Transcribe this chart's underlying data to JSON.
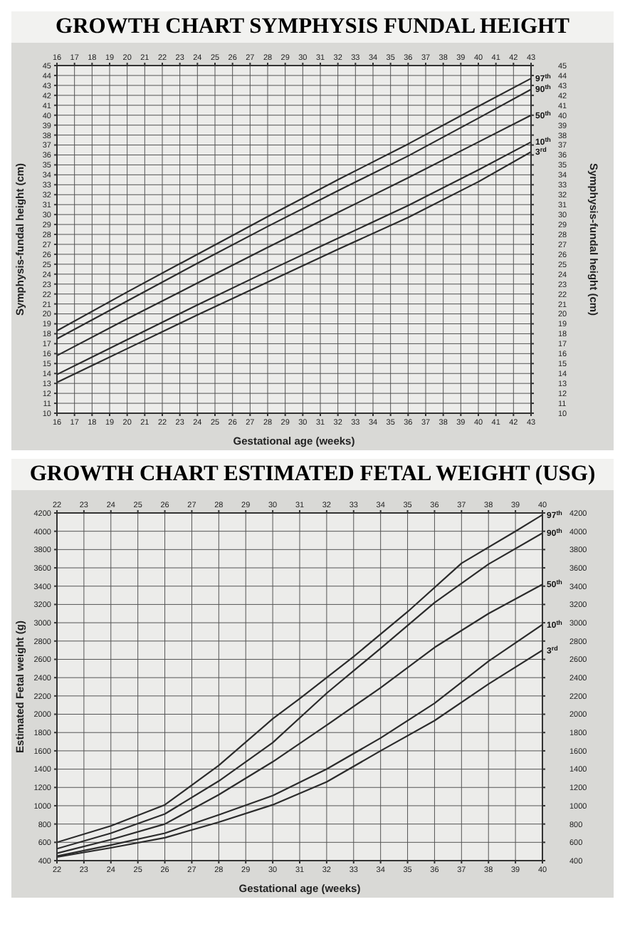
{
  "chart_data": [
    {
      "type": "line",
      "title": "GROWTH CHART SYMPHYSIS FUNDAL HEIGHT",
      "xlabel": "Gestational age (weeks)",
      "ylabel": "Symphysis-fundal height (cm)",
      "y2label": "Symphysis-fundal height (cm)",
      "xlim": [
        16,
        43
      ],
      "xticks": [
        16,
        17,
        18,
        19,
        20,
        21,
        22,
        23,
        24,
        25,
        26,
        27,
        28,
        29,
        30,
        31,
        32,
        33,
        34,
        35,
        36,
        37,
        38,
        39,
        40,
        41,
        42,
        43
      ],
      "x2lim": [
        16,
        43
      ],
      "x2ticks": [
        16,
        17,
        18,
        19,
        20,
        21,
        22,
        23,
        24,
        25,
        26,
        27,
        28,
        29,
        30,
        31,
        32,
        33,
        34,
        35,
        36,
        37,
        38,
        39,
        40,
        41,
        42,
        43
      ],
      "ylim": [
        10,
        45
      ],
      "yticks": [
        10,
        11,
        12,
        13,
        14,
        15,
        16,
        17,
        18,
        19,
        20,
        21,
        22,
        23,
        24,
        25,
        26,
        27,
        28,
        29,
        30,
        31,
        32,
        33,
        34,
        35,
        36,
        37,
        38,
        39,
        40,
        41,
        42,
        43,
        44,
        45
      ],
      "y2lim": [
        10,
        45
      ],
      "y2ticks": [
        10,
        11,
        12,
        13,
        14,
        15,
        16,
        17,
        18,
        19,
        20,
        21,
        22,
        23,
        24,
        25,
        26,
        27,
        28,
        29,
        30,
        31,
        32,
        33,
        34,
        35,
        36,
        37,
        38,
        39,
        40,
        41,
        42,
        43,
        44,
        45
      ],
      "grid": true,
      "legend": "right",
      "marker": "none",
      "line_style": "solid",
      "series": [
        {
          "name": "97$^{th}$",
          "color": "#2b2b2b",
          "x": [
            16,
            20,
            24,
            28,
            32,
            36,
            40,
            43
          ],
          "values": [
            18.3,
            22.2,
            26.0,
            29.8,
            33.5,
            37.1,
            40.9,
            43.7
          ]
        },
        {
          "name": "90$^{th}$",
          "color": "#2b2b2b",
          "x": [
            16,
            20,
            24,
            28,
            32,
            36,
            40,
            43
          ],
          "values": [
            17.5,
            21.3,
            25.1,
            28.8,
            32.4,
            35.9,
            39.7,
            42.6
          ]
        },
        {
          "name": "50$^{th}$",
          "color": "#2b2b2b",
          "x": [
            16,
            20,
            24,
            28,
            32,
            36,
            40,
            43
          ],
          "values": [
            15.8,
            19.5,
            23.1,
            26.7,
            30.2,
            33.7,
            37.3,
            40.0
          ]
        },
        {
          "name": "10$^{th}$",
          "color": "#2b2b2b",
          "x": [
            16,
            20,
            24,
            28,
            32,
            36,
            40,
            43
          ],
          "values": [
            13.9,
            17.4,
            20.9,
            24.3,
            27.6,
            30.9,
            34.5,
            37.3
          ]
        },
        {
          "name": "3$^{rd}$",
          "color": "#2b2b2b",
          "x": [
            16,
            20,
            24,
            28,
            32,
            36,
            40,
            43
          ],
          "values": [
            13.1,
            16.5,
            19.9,
            23.2,
            26.5,
            29.7,
            33.3,
            36.3
          ]
        }
      ]
    },
    {
      "type": "line",
      "title": "GROWTH CHART ESTIMATED FETAL WEIGHT (USG)",
      "xlabel": "Gestational age (weeks)",
      "ylabel": "Estimated Fetal weight (g)",
      "xlim": [
        22,
        40
      ],
      "xticks": [
        22,
        23,
        24,
        25,
        26,
        27,
        28,
        29,
        30,
        31,
        32,
        33,
        34,
        35,
        36,
        37,
        38,
        39,
        40
      ],
      "x2lim": [
        22,
        40
      ],
      "x2ticks": [
        22,
        23,
        24,
        25,
        26,
        27,
        28,
        29,
        30,
        31,
        32,
        33,
        34,
        35,
        36,
        37,
        38,
        39,
        40
      ],
      "ylim": [
        400,
        4200
      ],
      "yticks": [
        400,
        600,
        800,
        1000,
        1200,
        1400,
        1600,
        1800,
        2000,
        2200,
        2400,
        2600,
        2800,
        3000,
        3200,
        3400,
        3600,
        3800,
        4000,
        4200
      ],
      "y2lim": [
        400,
        4200
      ],
      "y2ticks": [
        400,
        600,
        800,
        1000,
        1200,
        1400,
        1600,
        1800,
        2000,
        2200,
        2400,
        2600,
        2800,
        3000,
        3200,
        3400,
        3600,
        3800,
        4000,
        4200
      ],
      "grid": true,
      "legend": "right",
      "marker": "none",
      "line_style": "solid",
      "series": [
        {
          "name": "97$^{th}$",
          "color": "#2b2b2b",
          "x": [
            22,
            24,
            26,
            28,
            30,
            31,
            32,
            33,
            35,
            37,
            39,
            40
          ],
          "values": [
            600,
            780,
            1010,
            1440,
            1950,
            2170,
            2400,
            2630,
            3120,
            3650,
            4000,
            4180
          ]
        },
        {
          "name": "90$^{th}$",
          "color": "#2b2b2b",
          "x": [
            22,
            24,
            26,
            28,
            30,
            32,
            34,
            36,
            38,
            40
          ],
          "values": [
            530,
            700,
            910,
            1270,
            1690,
            2230,
            2720,
            3220,
            3640,
            3980
          ]
        },
        {
          "name": "50$^{th}$",
          "color": "#2b2b2b",
          "x": [
            22,
            24,
            26,
            28,
            30,
            32,
            34,
            36,
            38,
            40
          ],
          "values": [
            480,
            630,
            800,
            1120,
            1480,
            1880,
            2290,
            2730,
            3100,
            3420
          ]
        },
        {
          "name": "10$^{th}$",
          "color": "#2b2b2b",
          "x": [
            22,
            24,
            26,
            28,
            30,
            32,
            34,
            36,
            38,
            40
          ],
          "values": [
            450,
            570,
            700,
            900,
            1110,
            1400,
            1740,
            2120,
            2580,
            2980
          ]
        },
        {
          "name": "3$^{rd}$",
          "color": "#2b2b2b",
          "x": [
            22,
            24,
            26,
            28,
            30,
            32,
            34,
            36,
            38,
            40
          ],
          "values": [
            440,
            540,
            650,
            820,
            1010,
            1260,
            1600,
            1930,
            2330,
            2700
          ]
        }
      ]
    }
  ]
}
